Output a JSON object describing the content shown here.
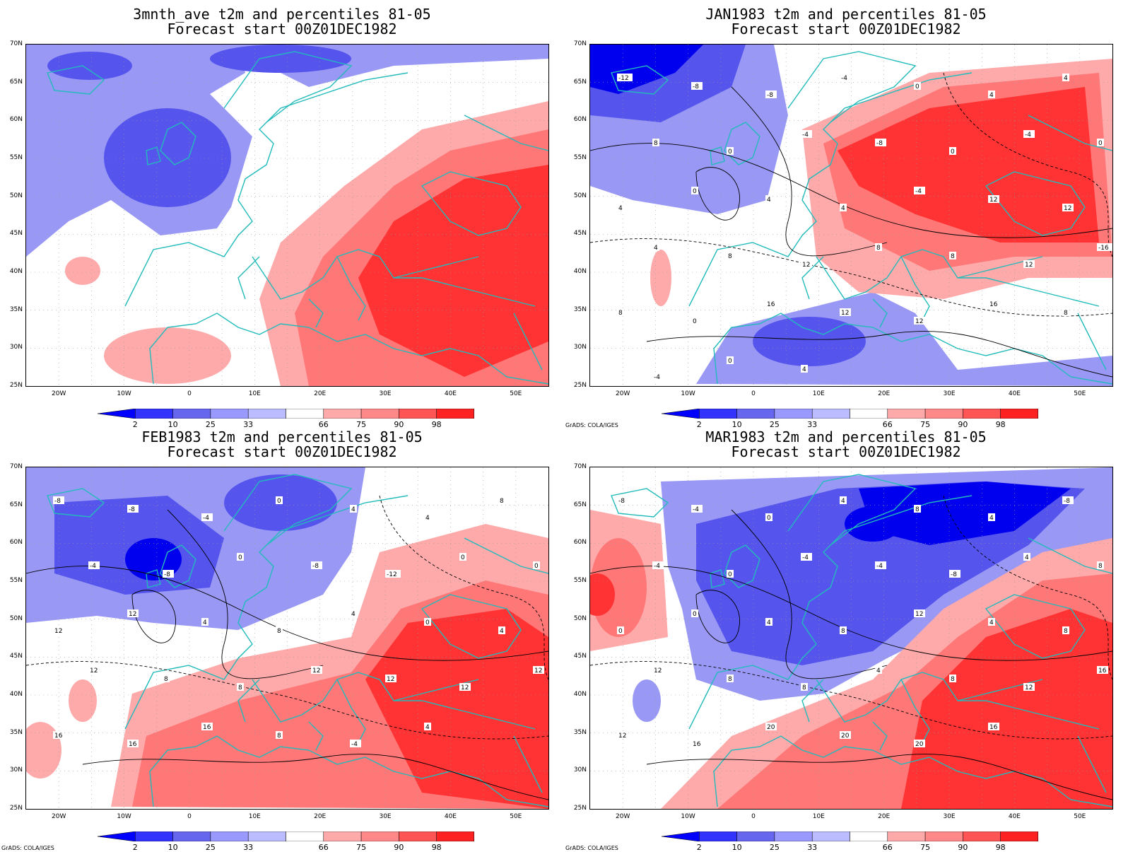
{
  "panels": [
    {
      "title_line1": "3mnth_ave t2m and percentiles 81-05",
      "title_line2": "Forecast start 00Z01DEC1982",
      "credit": "",
      "contour_labels": []
    },
    {
      "title_line1": "JAN1983 t2m and percentiles 81-05",
      "title_line2": "Forecast start 00Z01DEC1982",
      "credit": "GrADS: COLA/IGES",
      "contour_labels": [
        "-12",
        "-8",
        "-8",
        "-4",
        "0",
        "4",
        "4",
        "8",
        "0",
        "-4",
        "-8",
        "0",
        "-4",
        "0",
        "4",
        "0",
        "4",
        "4",
        "-4",
        "12",
        "12",
        "4",
        "8",
        "12",
        "8",
        "8",
        "12",
        "-16",
        "8",
        "0",
        "16",
        "12",
        "12",
        "16",
        "8",
        "-4",
        "0",
        "4"
      ]
    },
    {
      "title_line1": "FEB1983 t2m and percentiles 81-05",
      "title_line2": "Forecast start 00Z01DEC1982",
      "credit": "GrADS: COLA/IGES",
      "contour_labels": [
        "-8",
        "-8",
        "-4",
        "0",
        "4",
        "4",
        "8",
        "-4",
        "-8",
        "0",
        "-8",
        "-12",
        "0",
        "0",
        "12",
        "12",
        "4",
        "8",
        "4",
        "0",
        "4",
        "12",
        "8",
        "8",
        "12",
        "12",
        "12",
        "12",
        "16",
        "16",
        "16",
        "8",
        "-4",
        "4"
      ]
    },
    {
      "title_line1": "MAR1983 t2m and percentiles 81-05",
      "title_line2": "Forecast start 00Z01DEC1982",
      "credit": "GrADS: COLA/IGES",
      "contour_labels": [
        "-8",
        "-4",
        "0",
        "4",
        "8",
        "4",
        "-8",
        "-4",
        "0",
        "-4",
        "-4",
        "-8",
        "4",
        "8",
        "0",
        "0",
        "4",
        "8",
        "12",
        "4",
        "8",
        "12",
        "8",
        "8",
        "4",
        "8",
        "12",
        "16",
        "12",
        "16",
        "20",
        "20",
        "20",
        "16"
      ]
    }
  ],
  "y_axis_labels": [
    "70N",
    "65N",
    "60N",
    "55N",
    "50N",
    "45N",
    "40N",
    "35N",
    "30N",
    "25N"
  ],
  "x_axis_labels": [
    "20W",
    "10W",
    "0",
    "10E",
    "20E",
    "30E",
    "40E",
    "50E"
  ],
  "colorbar": {
    "labels": [
      "2",
      "10",
      "25",
      "33",
      "66",
      "75",
      "90",
      "98"
    ],
    "colors": [
      "#0000ff",
      "#3333ff",
      "#6666ee",
      "#9999ff",
      "#bbbbff",
      "#ffffff",
      "#ffaaaa",
      "#ff8888",
      "#ff5555",
      "#ff2222",
      "#ee0000"
    ]
  },
  "map_colors": {
    "blue_dark": "#0000ee",
    "blue_mid": "#5555ee",
    "blue_light": "#9999f5",
    "red_light": "#ffaaaa",
    "red_mid": "#ff7777",
    "red_dark": "#ff3333",
    "coast": "#22bbbb",
    "grid": "#999999"
  },
  "map_extent": {
    "lon": [
      -25,
      55
    ],
    "lat": [
      25,
      70
    ]
  }
}
